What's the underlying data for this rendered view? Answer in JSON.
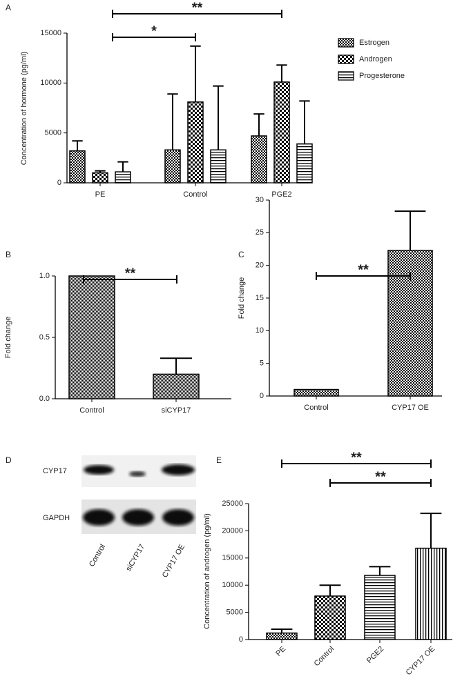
{
  "chart_data": [
    {
      "type": "bar",
      "panel": "A",
      "ylabel": "Concentration of hormone (pg/ml)",
      "categories": [
        "PE",
        "Control",
        "PGE2"
      ],
      "series": [
        {
          "name": "Estrogen",
          "color": "#000000",
          "pattern": "checker",
          "values": [
            3200,
            3300,
            4700
          ],
          "errors": [
            1000,
            5600,
            2200
          ]
        },
        {
          "name": "Androgen",
          "color": "#000000",
          "pattern": "checkerbig",
          "values": [
            1000,
            8100,
            10100
          ],
          "errors": [
            200,
            5600,
            1700
          ]
        },
        {
          "name": "Progesterone",
          "color": "#000000",
          "pattern": "hlines",
          "values": [
            1100,
            3300,
            3900
          ],
          "errors": [
            1000,
            6400,
            4300
          ]
        }
      ],
      "ylim": [
        0,
        15000
      ],
      "yticks": [
        0,
        5000,
        10000,
        15000
      ],
      "annotations": [
        "*",
        "**"
      ]
    },
    {
      "type": "bar",
      "panel": "B",
      "ylabel": "Fold change",
      "categories": [
        "Control",
        "siCYP17"
      ],
      "values": [
        1.0,
        0.2
      ],
      "errors": [
        null,
        0.13
      ],
      "color": "#000000",
      "patterns": [
        "fine",
        "fine"
      ],
      "ylim": [
        0,
        1.0
      ],
      "yticks": [
        {
          "value": 0,
          "label": "0.0"
        },
        {
          "value": 0.5,
          "label": "0.5"
        },
        {
          "value": 1,
          "label": "1.0"
        }
      ],
      "annotations": [
        "**"
      ]
    },
    {
      "type": "bar",
      "panel": "C",
      "ylabel": "Fold change",
      "categories": [
        "Control",
        "CYP17 OE"
      ],
      "values": [
        1,
        22.3
      ],
      "errors": [
        null,
        6
      ],
      "color": "#000000",
      "patterns": [
        "checker",
        "checker"
      ],
      "ylim": [
        0,
        30
      ],
      "yticks": [
        0,
        5,
        10,
        15,
        20,
        25,
        30
      ],
      "annotations": [
        "**"
      ]
    },
    {
      "type": "bar",
      "panel": "E",
      "ylabel": "Concentration of androgen (pg/ml)",
      "categories": [
        "PE",
        "Control",
        "PGE2",
        "CYP17 OE"
      ],
      "values": [
        1200,
        8000,
        11800,
        16800
      ],
      "errors": [
        700,
        2000,
        1600,
        6400
      ],
      "color": "#000000",
      "patterns": [
        "checker",
        "checkerbig",
        "hlines",
        "vlines"
      ],
      "ylim": [
        0,
        25000
      ],
      "yticks": [
        0,
        5000,
        10000,
        15000,
        20000,
        25000
      ],
      "annotations": [
        "**",
        "**"
      ]
    }
  ],
  "blot": {
    "panel": "D",
    "rows": [
      "CYP17",
      "GAPDH"
    ],
    "lanes": [
      "Control",
      "siCYP17",
      "CYP17 OE"
    ]
  }
}
